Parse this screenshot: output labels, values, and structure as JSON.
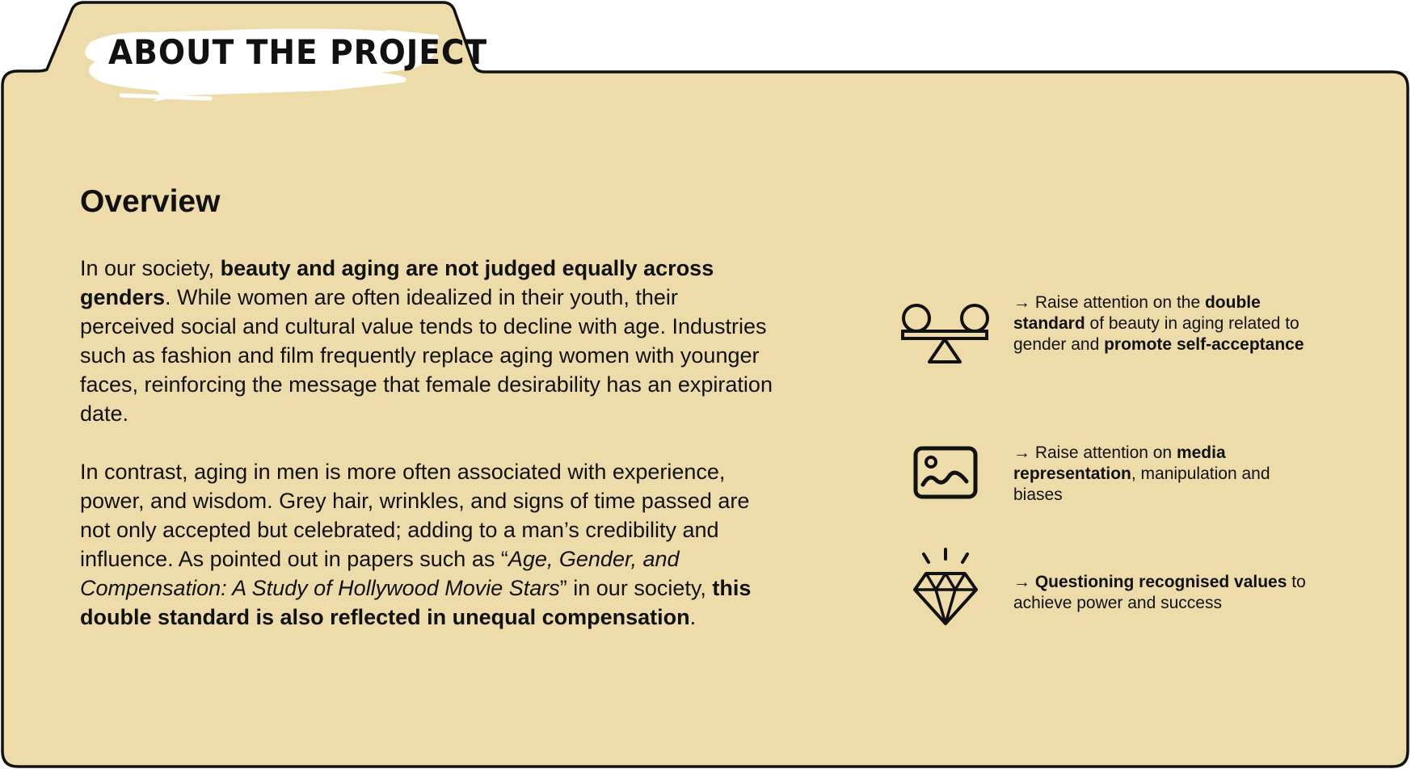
{
  "tab": {
    "title": "ABOUT THE PROJECT"
  },
  "overview": {
    "heading": "Overview",
    "paragraph_1": {
      "t1": "In our society, ",
      "b1": "beauty and aging are not judged equally across genders",
      "t2": ". While women are often idealized in their youth, their perceived social and cultural value tends to decline with age. Industries such as fashion and film frequently replace aging women with younger faces, reinforcing the message that female desirability has an expiration date."
    },
    "paragraph_2": {
      "t1": "In contrast, aging in men is more often associated with experience, power, and wisdom. Grey hair, wrinkles, and signs of time passed are not only accepted but celebrated; adding to a man’s credibility and influence. As pointed out in papers such as  “",
      "i1": "Age, Gender, and Compensation: A Study of Hollywood Movie Stars",
      "t2": "” in our society, ",
      "b1": "this double standard is also reflected in unequal compensation",
      "t3": "."
    }
  },
  "goals": [
    {
      "icon": "balance-scale-icon",
      "t1": "→ Raise attention on the ",
      "b1": "double standard",
      "t2": " of beauty in aging related to gender and ",
      "b2": "promote self-acceptance",
      "t3": ""
    },
    {
      "icon": "image-icon",
      "t1": "→ Raise attention on ",
      "b1": "media representation",
      "t2": ", manipulation and biases"
    },
    {
      "icon": "diamond-icon",
      "t1": "→ ",
      "b1": "Questioning recognised values",
      "t2": " to achieve power and success"
    }
  ],
  "colors": {
    "folder_fill": "#eddcaa",
    "outline": "#111111",
    "brush_stroke": "#ffffff"
  }
}
